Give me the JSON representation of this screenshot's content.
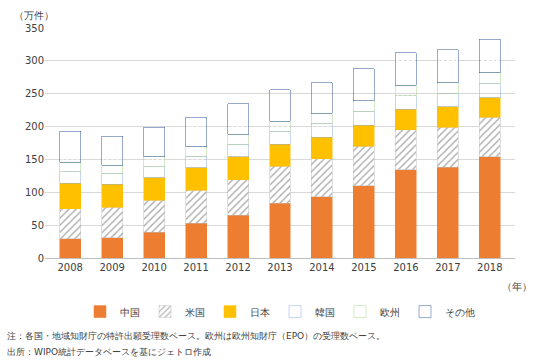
{
  "chart_data": {
    "type": "bar",
    "stacked": true,
    "y_label": "（万件）",
    "x_label": "（年）",
    "notes": [
      "注：各国・地域知財庁の特許出願受理数ベース。欧州は欧州知財庁（EPO）の受理数ベース。",
      "出所：WIPO統計データベースを基にジェトロ作成"
    ],
    "categories": [
      "2008",
      "2009",
      "2010",
      "2011",
      "2012",
      "2013",
      "2014",
      "2015",
      "2016",
      "2017",
      "2018"
    ],
    "series": [
      {
        "name": "中国",
        "color": "#ed7d31",
        "marker": "solid",
        "values": [
          29,
          31,
          39,
          53,
          65,
          83,
          93,
          110,
          134,
          138,
          154
        ]
      },
      {
        "name": "米国",
        "color": "#ffffff",
        "marker": "hatch",
        "values": [
          46,
          46,
          49,
          50,
          54,
          57,
          58,
          60,
          61,
          61,
          60
        ]
      },
      {
        "name": "日本",
        "color": "#ffc000",
        "marker": "solid",
        "values": [
          39,
          35,
          34,
          34,
          35,
          33,
          33,
          32,
          31,
          31,
          30
        ]
      },
      {
        "name": "韓国",
        "color": "#8faadc",
        "marker": "dots",
        "values": [
          17,
          16,
          17,
          18,
          19,
          20,
          21,
          21,
          21,
          20,
          21
        ]
      },
      {
        "name": "欧州",
        "color": "#a9d18e",
        "marker": "dots",
        "values": [
          15,
          13,
          15,
          14,
          15,
          15,
          15,
          16,
          16,
          17,
          17
        ]
      },
      {
        "name": "その他",
        "color": "#2f5597",
        "marker": "dots",
        "values": [
          47,
          44,
          45,
          45,
          47,
          48,
          47,
          49,
          49,
          50,
          51
        ]
      }
    ],
    "ylim": [
      0,
      350
    ],
    "yticks": [
      0,
      50,
      100,
      150,
      200,
      250,
      300,
      350
    ],
    "grid": true,
    "legend": "bottom"
  }
}
